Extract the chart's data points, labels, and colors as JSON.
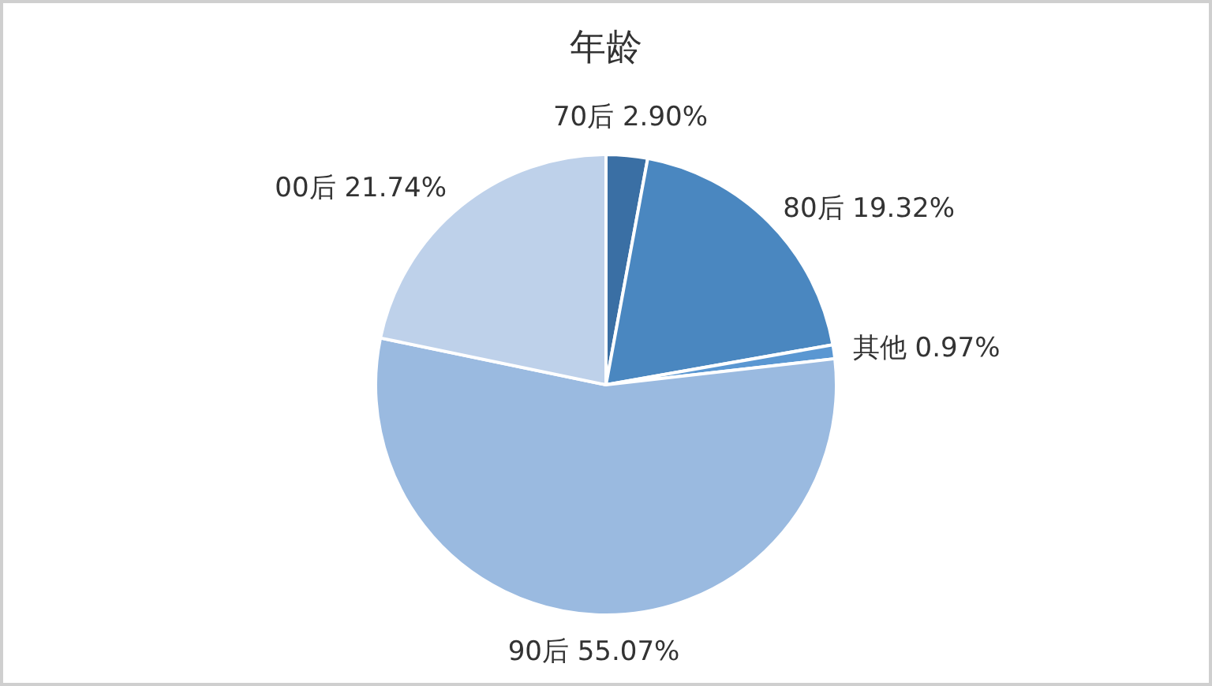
{
  "chart_data": {
    "type": "pie",
    "title": "年龄",
    "categories": [
      "70后",
      "80后",
      "其他",
      "90后",
      "00后"
    ],
    "values": [
      2.9,
      19.32,
      0.97,
      55.07,
      21.74
    ],
    "value_labels": [
      "2.90%",
      "19.32%",
      "0.97%",
      "55.07%",
      "21.74%"
    ],
    "colors": [
      "#3a6fa4",
      "#4a87c0",
      "#5a97d2",
      "#9abae0",
      "#bed1ea"
    ]
  }
}
